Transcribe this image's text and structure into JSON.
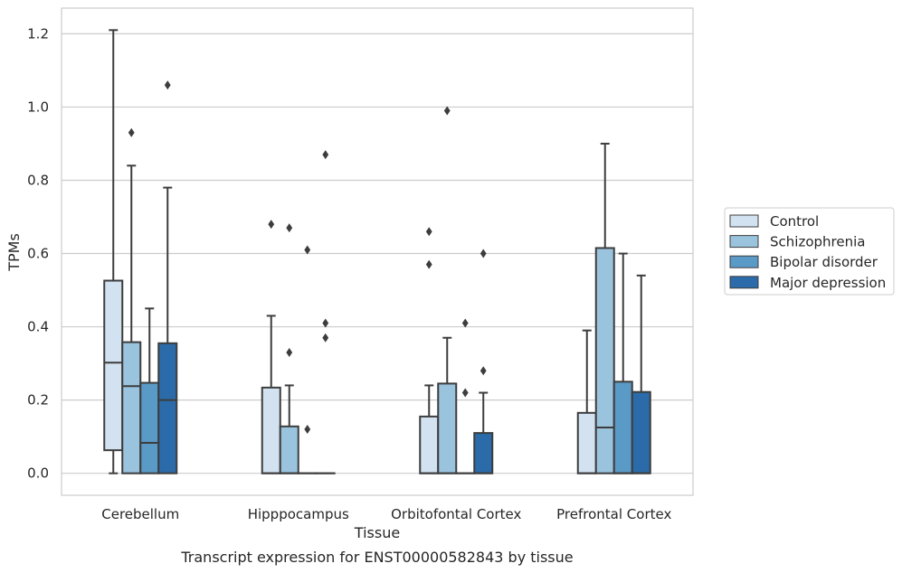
{
  "caption": "Transcript expression for ENST00000582843 by tissue",
  "chart_data": {
    "type": "boxplot",
    "xlabel": "Tissue",
    "ylabel": "TPMs",
    "ylim": [
      -0.06,
      1.27
    ],
    "yticks": [
      0.0,
      0.2,
      0.4,
      0.6,
      0.8,
      1.0,
      1.2
    ],
    "ytick_labels": [
      "0.0",
      "0.2",
      "0.4",
      "0.6",
      "0.8",
      "1.0",
      "1.2"
    ],
    "grid": "horizontal",
    "legend_position": "right",
    "categories": [
      "Cerebellum",
      "Hipppocampus",
      "Orbitofontal Cortex",
      "Prefrontal Cortex"
    ],
    "series": [
      {
        "name": "Control",
        "color": "#d3e2f1",
        "boxes": [
          {
            "q1": 0.063,
            "median": 0.302,
            "q3": 0.526,
            "whisker_low": 0.0,
            "whisker_high": 1.21,
            "outliers": []
          },
          {
            "q1": 0.0,
            "median": 0.0,
            "q3": 0.234,
            "whisker_low": 0.0,
            "whisker_high": 0.43,
            "outliers": [
              0.68
            ]
          },
          {
            "q1": 0.0,
            "median": 0.0,
            "q3": 0.155,
            "whisker_low": 0.0,
            "whisker_high": 0.24,
            "outliers": [
              0.57,
              0.66
            ]
          },
          {
            "q1": 0.0,
            "median": 0.0,
            "q3": 0.165,
            "whisker_low": 0.0,
            "whisker_high": 0.39,
            "outliers": []
          }
        ]
      },
      {
        "name": "Schizophrenia",
        "color": "#9ac3de",
        "boxes": [
          {
            "q1": 0.0,
            "median": 0.238,
            "q3": 0.358,
            "whisker_low": 0.0,
            "whisker_high": 0.84,
            "outliers": [
              0.93
            ]
          },
          {
            "q1": 0.0,
            "median": 0.0,
            "q3": 0.128,
            "whisker_low": 0.0,
            "whisker_high": 0.24,
            "outliers": [
              0.33,
              0.67
            ]
          },
          {
            "q1": 0.0,
            "median": 0.0,
            "q3": 0.245,
            "whisker_low": 0.0,
            "whisker_high": 0.37,
            "outliers": [
              0.99
            ]
          },
          {
            "q1": 0.0,
            "median": 0.125,
            "q3": 0.615,
            "whisker_low": 0.0,
            "whisker_high": 0.9,
            "outliers": []
          }
        ]
      },
      {
        "name": "Bipolar disorder",
        "color": "#5a9ac7",
        "boxes": [
          {
            "q1": 0.0,
            "median": 0.083,
            "q3": 0.247,
            "whisker_low": 0.0,
            "whisker_high": 0.45,
            "outliers": []
          },
          {
            "q1": 0.0,
            "median": 0.0,
            "q3": 0.0,
            "whisker_low": 0.0,
            "whisker_high": 0.0,
            "outliers": [
              0.12,
              0.61
            ]
          },
          {
            "q1": 0.0,
            "median": 0.0,
            "q3": 0.0,
            "whisker_low": 0.0,
            "whisker_high": 0.0,
            "outliers": [
              0.22,
              0.41
            ]
          },
          {
            "q1": 0.0,
            "median": 0.0,
            "q3": 0.25,
            "whisker_low": 0.0,
            "whisker_high": 0.6,
            "outliers": []
          }
        ]
      },
      {
        "name": "Major depression",
        "color": "#2b6ba9",
        "boxes": [
          {
            "q1": 0.0,
            "median": 0.2,
            "q3": 0.355,
            "whisker_low": 0.0,
            "whisker_high": 0.78,
            "outliers": [
              1.06
            ]
          },
          {
            "q1": 0.0,
            "median": 0.0,
            "q3": 0.0,
            "whisker_low": 0.0,
            "whisker_high": 0.0,
            "outliers": [
              0.37,
              0.41,
              0.87
            ]
          },
          {
            "q1": 0.0,
            "median": 0.0,
            "q3": 0.11,
            "whisker_low": 0.0,
            "whisker_high": 0.22,
            "outliers": [
              0.28,
              0.6
            ]
          },
          {
            "q1": 0.0,
            "median": 0.0,
            "q3": 0.222,
            "whisker_low": 0.0,
            "whisker_high": 0.54,
            "outliers": []
          }
        ]
      }
    ]
  }
}
